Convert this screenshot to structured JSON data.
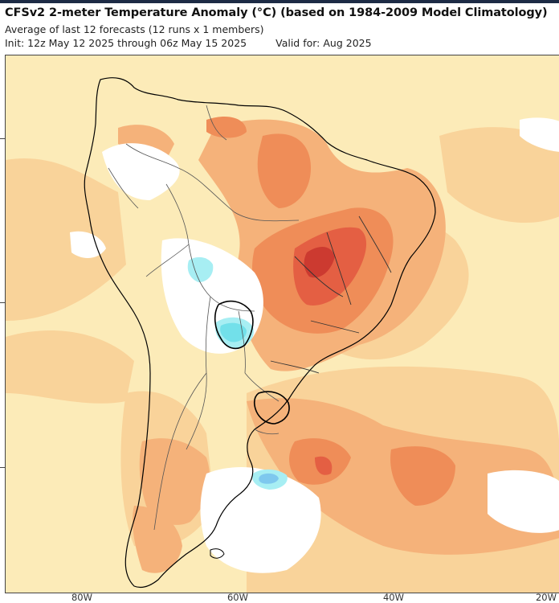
{
  "header": {
    "title": "CFSv2 2-meter Temperature Anomaly (°C) (based on 1984-2009 Model Climatology)",
    "subtitle": "Average of last 12 forecasts (12 runs x 1 members)",
    "init": "Init: 12z May 12 2025 through 06z May 15 2025",
    "valid": "Valid for: Aug 2025"
  },
  "map": {
    "region": "South America",
    "colors": {
      "neutral": "#ffffff",
      "cool_light": "#a7eef3",
      "cool": "#72e0ea",
      "cool_blue": "#7ec8ee",
      "warm_1": "#fcebb8",
      "warm_2": "#f9d39a",
      "warm_3": "#f5b27a",
      "warm_4": "#ef8d58",
      "warm_5": "#e45f43",
      "warm_6": "#cc3a30",
      "land_border": "#000000",
      "internal_border": "#555555"
    }
  },
  "axes": {
    "x_ticks": [
      "80W",
      "60W",
      "40W",
      "20W"
    ]
  }
}
